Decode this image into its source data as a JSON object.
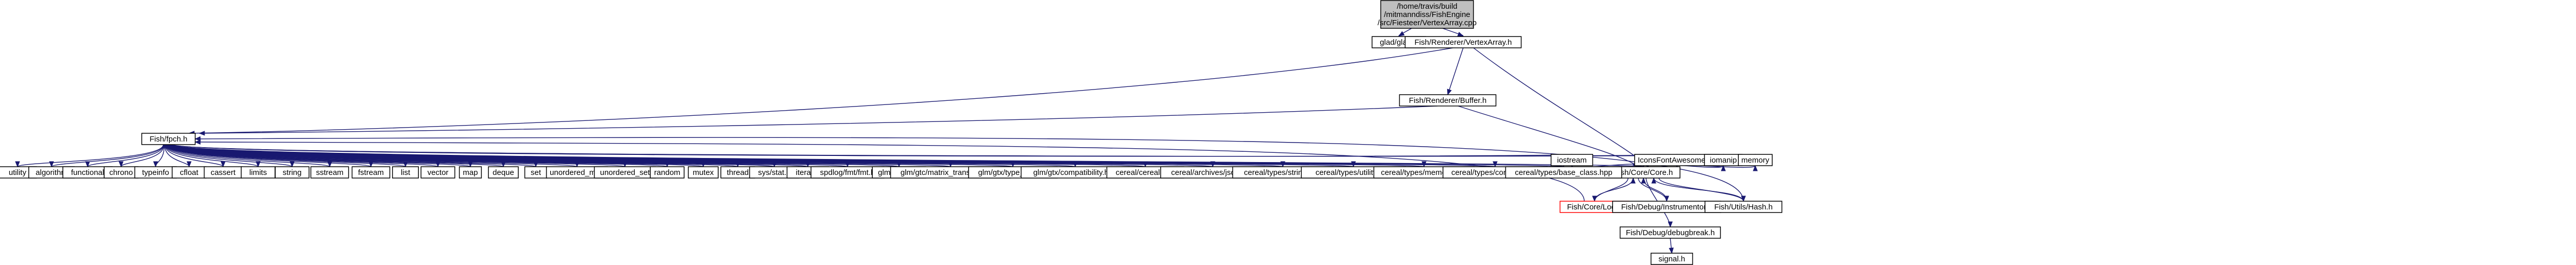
{
  "graph": {
    "root_label_lines": [
      "/home/travis/build",
      "/mitmanndiss/FishEngine",
      "/src/Fiesteer/VertexArray.cpp"
    ],
    "nodes": {
      "glad": "glad/glad.h",
      "vertexarray_h": "Fish/Renderer/VertexArray.h",
      "buffer_h": "Fish/Renderer/Buffer.h",
      "fishpch": "Fish/fpch.h",
      "core": "Fish/Core/Core.h",
      "log": "Fish/Core/Log.h",
      "instrumentor": "Fish/Debug/Instrumentor.h",
      "debugbreak": "Fish/Debug/debugbreak.h",
      "hash": "Fish/Utils/Hash.h",
      "signal": "signal.h",
      "iostream": "iostream",
      "iconsfont": "IconsFontAwesome5.h",
      "iomanip": "iomanip",
      "memory": "memory",
      "headers": [
        "utility",
        "algorithm",
        "functional",
        "chrono",
        "typeinfo",
        "cfloat",
        "cassert",
        "limits",
        "string",
        "sstream",
        "fstream",
        "list",
        "vector",
        "map",
        "deque",
        "set",
        "unordered_map",
        "unordered_set",
        "random",
        "mutex",
        "thread",
        "sys/stat.h",
        "iterator",
        "spdlog/fmt/fmt.h",
        "glm/glm.hpp",
        "glm/gtc/matrix_transform.hpp",
        "glm/gtx/type_ptr.hpp",
        "glm/gtx/compatibility.hpp",
        "cereal/cereal.hpp",
        "cereal/archives/json.hpp",
        "cereal/types/string.hpp",
        "cereal/types/utility.hpp",
        "cereal/types/memory.hpp",
        "cereal/types/complex.hpp",
        "cereal/types/base_class.hpp"
      ]
    },
    "colors": {
      "edge": "#191970",
      "root_fill": "#bfbfbf",
      "highlight_border": "#ff0000"
    }
  }
}
